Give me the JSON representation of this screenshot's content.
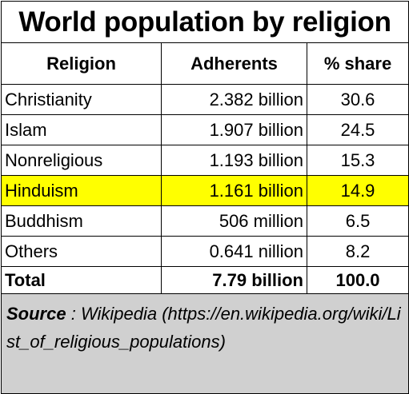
{
  "title": "World population by religion",
  "columns": [
    "Religion",
    "Adherents",
    "% share"
  ],
  "rows": [
    {
      "religion": "Christianity",
      "adherents": "2.382 billion",
      "share": "30.6",
      "highlight": false
    },
    {
      "religion": "Islam",
      "adherents": "1.907 billion",
      "share": "24.5",
      "highlight": false
    },
    {
      "religion": "Nonreligious",
      "adherents": "1.193 billion",
      "share": "15.3",
      "highlight": false
    },
    {
      "religion": "Hinduism",
      "adherents": "1.161 billion",
      "share": "14.9",
      "highlight": true
    },
    {
      "religion": "Buddhism",
      "adherents": "506 million",
      "share": "6.5",
      "highlight": false
    },
    {
      "religion": "Others",
      "adherents": "0.641 nillion",
      "share": "8.2",
      "highlight": false
    }
  ],
  "total": {
    "label": "Total",
    "adherents": "7.79 billion",
    "share": "100.0"
  },
  "source": {
    "label": "Source",
    "separator": " : ",
    "text": "Wikipedia (https://en.wikipedia.org/wiki/List_of_religious_populations)"
  },
  "colors": {
    "highlight": "#ffff00",
    "source_bg": "#d0d0d0"
  }
}
